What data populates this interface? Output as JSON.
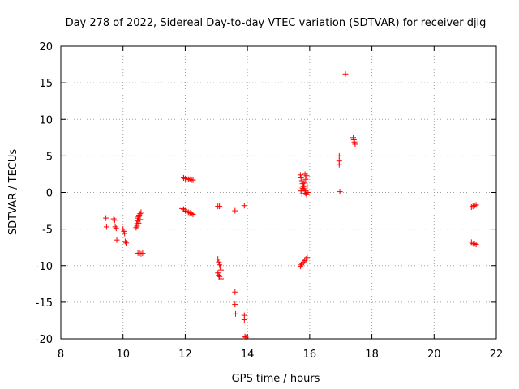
{
  "chart_data": {
    "type": "scatter",
    "title": "Day 278 of 2022, Sidereal Day-to-day VTEC variation (SDTVAR) for receiver djig",
    "xlabel": "GPS time / hours",
    "ylabel": "SDTVAR / TECUs",
    "xlim": [
      8,
      22
    ],
    "ylim": [
      -20,
      20
    ],
    "xticks": [
      "8",
      "10",
      "12",
      "14",
      "16",
      "18",
      "20",
      "22"
    ],
    "yticks": [
      "-20",
      "-15",
      "-10",
      "-5",
      "0",
      "5",
      "10",
      "15",
      "20"
    ],
    "xtick_values": [
      8,
      10,
      12,
      14,
      16,
      18,
      20,
      22
    ],
    "ytick_values": [
      -20,
      -15,
      -10,
      -5,
      0,
      5,
      10,
      15,
      20
    ],
    "grid": true,
    "marker": "plus",
    "color": "#ff0000",
    "series": [
      {
        "points": [
          [
            9.45,
            -3.5
          ],
          [
            9.47,
            -4.7
          ],
          [
            9.7,
            -3.6
          ],
          [
            9.73,
            -3.8
          ],
          [
            9.75,
            -4.7
          ],
          [
            9.78,
            -4.9
          ],
          [
            9.8,
            -6.5
          ],
          [
            10.0,
            -5.0
          ],
          [
            10.03,
            -5.3
          ],
          [
            10.05,
            -5.6
          ],
          [
            10.07,
            -6.7
          ],
          [
            10.1,
            -6.9
          ],
          [
            10.42,
            -4.8
          ],
          [
            10.44,
            -4.3
          ],
          [
            10.46,
            -3.9
          ],
          [
            10.48,
            -3.5
          ],
          [
            10.5,
            -3.3
          ],
          [
            10.52,
            -3.1
          ],
          [
            10.55,
            -2.9
          ],
          [
            10.58,
            -2.7
          ],
          [
            10.45,
            -4.6
          ],
          [
            10.5,
            -4.2
          ],
          [
            10.55,
            -3.7
          ],
          [
            10.48,
            -8.3
          ],
          [
            10.53,
            -8.3
          ],
          [
            10.58,
            -8.4
          ],
          [
            10.63,
            -8.3
          ],
          [
            11.9,
            2.1
          ],
          [
            11.95,
            2.0
          ],
          [
            12.0,
            1.9
          ],
          [
            12.05,
            1.9
          ],
          [
            12.1,
            1.8
          ],
          [
            12.15,
            1.8
          ],
          [
            12.2,
            1.7
          ],
          [
            12.25,
            1.7
          ],
          [
            11.9,
            -2.2
          ],
          [
            11.95,
            -2.3
          ],
          [
            12.0,
            -2.5
          ],
          [
            12.05,
            -2.6
          ],
          [
            12.1,
            -2.7
          ],
          [
            12.15,
            -2.8
          ],
          [
            12.2,
            -2.9
          ],
          [
            12.25,
            -3.0
          ],
          [
            13.05,
            -1.9
          ],
          [
            13.1,
            -1.9
          ],
          [
            13.15,
            -2.0
          ],
          [
            13.05,
            -9.1
          ],
          [
            13.08,
            -9.5
          ],
          [
            13.1,
            -9.9
          ],
          [
            13.12,
            -10.2
          ],
          [
            13.15,
            -10.6
          ],
          [
            13.05,
            -11.0
          ],
          [
            13.08,
            -11.3
          ],
          [
            13.1,
            -11.5
          ],
          [
            13.15,
            -11.8
          ],
          [
            13.6,
            -2.5
          ],
          [
            13.9,
            -1.8
          ],
          [
            13.6,
            -13.6
          ],
          [
            13.6,
            -15.3
          ],
          [
            13.62,
            -16.6
          ],
          [
            13.9,
            -16.8
          ],
          [
            13.9,
            -17.4
          ],
          [
            13.92,
            -19.7
          ],
          [
            13.95,
            -19.8
          ],
          [
            15.7,
            2.4
          ],
          [
            15.72,
            2.0
          ],
          [
            15.75,
            1.6
          ],
          [
            15.77,
            1.2
          ],
          [
            15.8,
            0.8
          ],
          [
            15.82,
            0.5
          ],
          [
            15.85,
            0.2
          ],
          [
            15.87,
            -0.1
          ],
          [
            15.9,
            -0.3
          ],
          [
            15.72,
            0.2
          ],
          [
            15.77,
            0.6
          ],
          [
            15.82,
            1.3
          ],
          [
            15.87,
            1.8
          ],
          [
            15.9,
            2.3
          ],
          [
            15.85,
            2.5
          ],
          [
            15.92,
            0.9
          ],
          [
            15.95,
            0.0
          ],
          [
            15.75,
            -0.2
          ],
          [
            15.7,
            -10.1
          ],
          [
            15.73,
            -9.9
          ],
          [
            15.76,
            -9.7
          ],
          [
            15.8,
            -9.5
          ],
          [
            15.84,
            -9.3
          ],
          [
            15.88,
            -9.1
          ],
          [
            15.92,
            -8.9
          ],
          [
            16.95,
            5.0
          ],
          [
            16.95,
            4.3
          ],
          [
            16.95,
            3.8
          ],
          [
            16.97,
            0.1
          ],
          [
            17.15,
            16.2
          ],
          [
            17.4,
            7.5
          ],
          [
            17.42,
            7.2
          ],
          [
            17.44,
            6.9
          ],
          [
            17.46,
            6.6
          ],
          [
            21.2,
            -2.0
          ],
          [
            21.25,
            -1.9
          ],
          [
            21.3,
            -1.8
          ],
          [
            21.35,
            -1.7
          ],
          [
            21.2,
            -6.8
          ],
          [
            21.25,
            -7.0
          ],
          [
            21.3,
            -7.0
          ],
          [
            21.35,
            -7.1
          ]
        ]
      }
    ]
  }
}
